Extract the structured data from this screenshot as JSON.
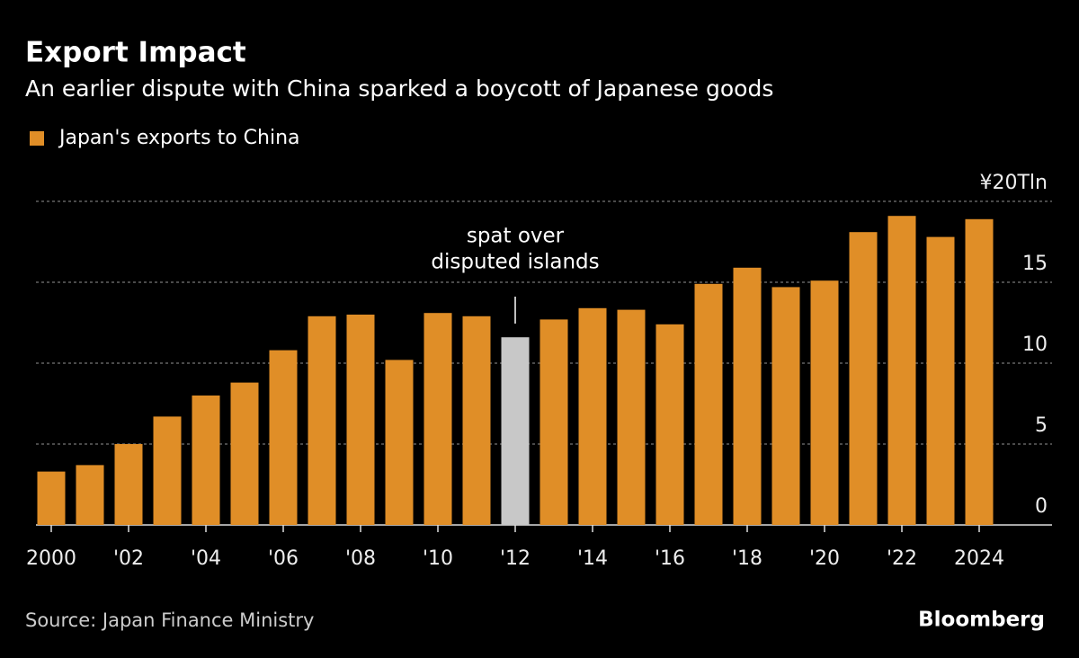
{
  "chart_data": {
    "type": "bar",
    "title": "Export Impact",
    "subtitle": "An earlier dispute with China sparked a boycott of Japanese goods",
    "legend": "Japan's exports to China",
    "categories": [
      "2000",
      null,
      "'02",
      null,
      "'04",
      null,
      "'06",
      null,
      "'08",
      null,
      "'10",
      null,
      "'12",
      null,
      "'14",
      null,
      "'16",
      null,
      "'18",
      null,
      "'20",
      null,
      "'22",
      null,
      "2024"
    ],
    "values": [
      3.3,
      3.7,
      5.0,
      6.7,
      8.0,
      8.8,
      10.8,
      12.9,
      13.0,
      10.2,
      13.1,
      12.9,
      11.6,
      12.7,
      13.4,
      13.3,
      12.4,
      14.9,
      15.9,
      14.7,
      15.1,
      18.1,
      19.1,
      17.8,
      18.9
    ],
    "color": "#e08e27",
    "colors": [
      "#e08e27",
      "#e08e27",
      "#e08e27",
      "#e08e27",
      "#e08e27",
      "#e08e27",
      "#e08e27",
      "#e08e27",
      "#e08e27",
      "#e08e27",
      "#e08e27",
      "#e08e27",
      "#c8c8c8",
      "#e08e27",
      "#e08e27",
      "#e08e27",
      "#e08e27",
      "#e08e27",
      "#e08e27",
      "#e08e27",
      "#e08e27",
      "#e08e27",
      "#e08e27",
      "#e08e27",
      "#e08e27"
    ],
    "ylim": [
      0,
      20
    ],
    "yticks": [
      0,
      5,
      10,
      15,
      {
        "value": 20,
        "label": "¥20Tln"
      }
    ],
    "grid": true,
    "annotation": [
      "spat over",
      "disputed islands"
    ],
    "source": "Source: Japan Finance Ministry",
    "brand": "Bloomberg"
  }
}
